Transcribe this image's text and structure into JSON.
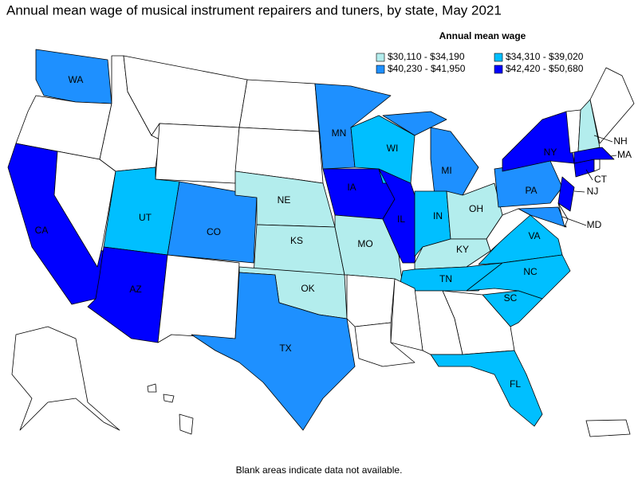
{
  "title": "Annual mean wage of musical instrument repairers and tuners, by state, May 2021",
  "legend": {
    "title": "Annual mean wage",
    "items": [
      {
        "label": "$30,110 - $34,190",
        "color": "#b3eded",
        "states": [
          "NE",
          "KS",
          "MO",
          "OK",
          "OH",
          "KY",
          "NH"
        ]
      },
      {
        "label": "$34,310 - $39,020",
        "color": "#00bfff",
        "states": [
          "UT",
          "WI",
          "IN",
          "TN",
          "VA",
          "NC",
          "SC",
          "FL"
        ]
      },
      {
        "label": "$40,230 - $41,950",
        "color": "#1e90ff",
        "states": [
          "WA",
          "MN",
          "MI",
          "CO",
          "TX",
          "PA",
          "MD"
        ]
      },
      {
        "label": "$42,420 - $50,680",
        "color": "#0000ff",
        "states": [
          "CA",
          "AZ",
          "IA",
          "IL",
          "NY",
          "NJ",
          "CT",
          "MA"
        ]
      }
    ]
  },
  "note": "Blank areas indicate data not available."
}
